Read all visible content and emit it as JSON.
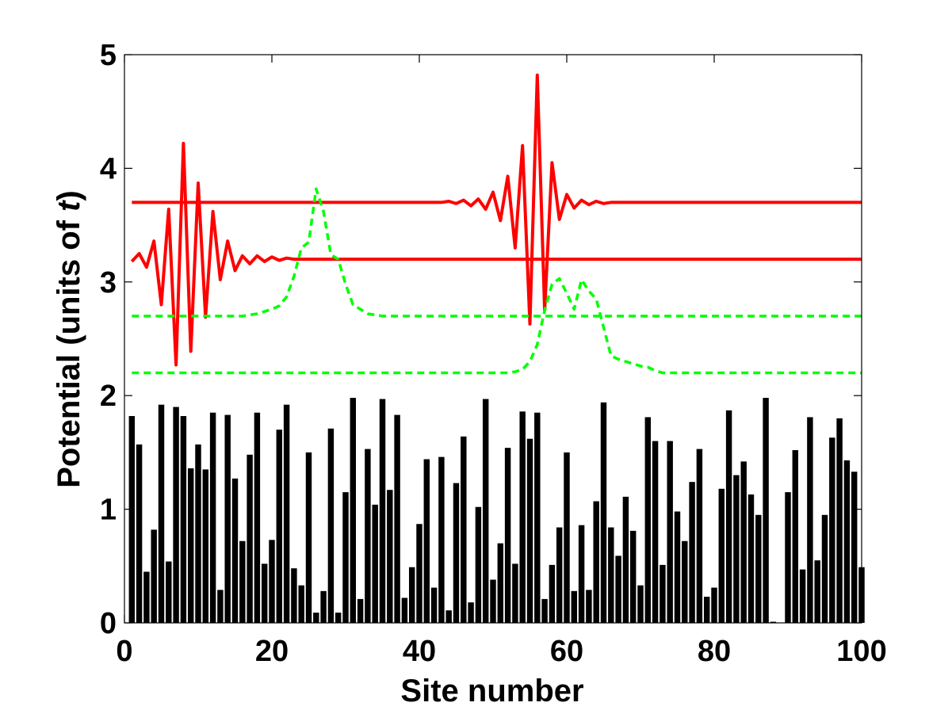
{
  "chart_data": {
    "type": "bar",
    "xlabel": "Site number",
    "ylabel_parts": {
      "prefix": "Potential (units of ",
      "italic": "t",
      "suffix": ")"
    },
    "xlim": [
      0,
      100
    ],
    "ylim": [
      0,
      5
    ],
    "xticks": [
      "0",
      "20",
      "40",
      "60",
      "80",
      "100"
    ],
    "yticks": [
      "0",
      "1",
      "2",
      "3",
      "4",
      "5"
    ],
    "grid": false,
    "colors": {
      "bars": "#000000",
      "red": "#ff0000",
      "green": "#00ff00",
      "axes": "#000000",
      "background": "#ffffff"
    },
    "bars": {
      "x": [
        1,
        2,
        3,
        4,
        5,
        6,
        7,
        8,
        9,
        10,
        11,
        12,
        13,
        14,
        15,
        16,
        17,
        18,
        19,
        20,
        21,
        22,
        23,
        24,
        25,
        26,
        27,
        28,
        29,
        30,
        31,
        32,
        33,
        34,
        35,
        36,
        37,
        38,
        39,
        40,
        41,
        42,
        43,
        44,
        45,
        46,
        47,
        48,
        49,
        50,
        51,
        52,
        53,
        54,
        55,
        56,
        57,
        58,
        59,
        60,
        61,
        62,
        63,
        64,
        65,
        66,
        67,
        68,
        69,
        70,
        71,
        72,
        73,
        74,
        75,
        76,
        77,
        78,
        79,
        80,
        81,
        82,
        83,
        84,
        85,
        86,
        87,
        88,
        89,
        90,
        91,
        92,
        93,
        94,
        95,
        96,
        97,
        98,
        99,
        100
      ],
      "values": [
        1.82,
        1.57,
        0.45,
        0.82,
        1.92,
        0.54,
        1.9,
        1.82,
        1.36,
        1.57,
        1.35,
        1.85,
        0.29,
        1.83,
        1.27,
        0.72,
        1.48,
        1.85,
        0.52,
        0.73,
        1.7,
        1.92,
        0.48,
        0.33,
        1.5,
        0.09,
        0.28,
        1.71,
        0.09,
        1.15,
        1.98,
        0.21,
        1.53,
        1.04,
        1.97,
        1.17,
        1.83,
        0.22,
        0.49,
        0.87,
        1.44,
        0.31,
        1.46,
        0.11,
        1.23,
        1.64,
        0.18,
        1.02,
        1.97,
        0.38,
        0.7,
        1.54,
        0.52,
        1.86,
        1.62,
        1.85,
        0.21,
        0.51,
        0.84,
        1.5,
        0.28,
        0.86,
        0.29,
        1.07,
        1.94,
        0.84,
        0.59,
        1.11,
        0.81,
        0.33,
        1.81,
        1.6,
        0.51,
        1.6,
        0.98,
        0.72,
        1.24,
        1.53,
        0.23,
        0.31,
        1.18,
        1.87,
        1.3,
        1.42,
        1.13,
        0.95,
        1.98,
        0.01,
        0.0,
        1.15,
        1.52,
        0.47,
        1.81,
        0.55,
        0.95,
        1.63,
        1.8,
        1.43,
        1.33,
        0.49
      ]
    },
    "series": [
      {
        "style": "solid-red",
        "segments": [
          {
            "x": [
              1,
              2,
              3,
              4,
              5,
              6,
              7,
              8,
              9,
              10,
              11,
              12,
              13,
              14,
              15,
              16,
              17,
              18,
              19,
              20,
              21,
              22,
              23,
              24,
              25,
              26,
              27,
              28,
              29,
              30,
              31,
              32,
              33,
              34,
              35,
              36,
              37,
              38,
              39,
              40,
              41,
              42,
              43,
              44,
              45,
              46,
              47,
              48,
              49,
              50,
              51,
              52,
              53,
              54,
              55,
              56,
              57,
              58,
              59,
              60,
              61,
              62,
              63,
              64,
              65,
              66,
              67,
              68,
              69,
              70,
              71,
              72,
              73,
              74,
              75,
              76,
              77,
              78,
              79,
              80,
              81,
              82,
              83,
              84,
              85,
              86,
              87,
              88,
              89,
              90,
              91,
              92,
              93,
              94,
              95,
              96,
              97,
              98,
              99,
              100
            ],
            "y": [
              3.18,
              3.25,
              3.13,
              3.36,
              2.8,
              3.64,
              2.27,
              4.22,
              2.39,
              3.87,
              2.69,
              3.62,
              3.02,
              3.36,
              3.1,
              3.23,
              3.16,
              3.23,
              3.18,
              3.22,
              3.19,
              3.21,
              3.2,
              3.2,
              3.2,
              3.2,
              3.2,
              3.2,
              3.2,
              3.2,
              3.2,
              3.2,
              3.2,
              3.2,
              3.2,
              3.2,
              3.2,
              3.2,
              3.2,
              3.2,
              3.2,
              3.2,
              3.2,
              3.2,
              3.2,
              3.2,
              3.2,
              3.2,
              3.2,
              3.2,
              3.2,
              3.2,
              3.2,
              3.2,
              3.2,
              3.2,
              3.2,
              3.2,
              3.2,
              3.2,
              3.2,
              3.2,
              3.2,
              3.2,
              3.2,
              3.2,
              3.2,
              3.2,
              3.2,
              3.2,
              3.2,
              3.2,
              3.2,
              3.2,
              3.2,
              3.2,
              3.2,
              3.2,
              3.2,
              3.2,
              3.2,
              3.2,
              3.2,
              3.2,
              3.2,
              3.2,
              3.2,
              3.2,
              3.2,
              3.2,
              3.2,
              3.2,
              3.2,
              3.2,
              3.2,
              3.2,
              3.2,
              3.2,
              3.2,
              3.2
            ]
          },
          {
            "x": [
              1,
              2,
              3,
              4,
              5,
              6,
              7,
              8,
              9,
              10,
              11,
              12,
              13,
              14,
              15,
              16,
              17,
              18,
              19,
              20,
              21,
              22,
              23,
              24,
              25,
              26,
              27,
              28,
              29,
              30,
              31,
              32,
              33,
              34,
              35,
              36,
              37,
              38,
              39,
              40,
              41,
              42,
              43,
              44,
              45,
              46,
              47,
              48,
              49,
              50,
              51,
              52,
              53,
              54,
              55,
              56,
              57,
              58,
              59,
              60,
              61,
              62,
              63,
              64,
              65,
              66,
              67,
              68,
              69,
              70,
              71,
              72,
              73,
              74,
              75,
              76,
              77,
              78,
              79,
              80,
              81,
              82,
              83,
              84,
              85,
              86,
              87,
              88,
              89,
              90,
              91,
              92,
              93,
              94,
              95,
              96,
              97,
              98,
              99,
              100
            ],
            "y": [
              3.7,
              3.7,
              3.7,
              3.7,
              3.7,
              3.7,
              3.7,
              3.7,
              3.7,
              3.7,
              3.7,
              3.7,
              3.7,
              3.7,
              3.7,
              3.7,
              3.7,
              3.7,
              3.7,
              3.7,
              3.7,
              3.7,
              3.7,
              3.7,
              3.7,
              3.7,
              3.7,
              3.7,
              3.7,
              3.7,
              3.7,
              3.7,
              3.7,
              3.7,
              3.7,
              3.7,
              3.7,
              3.7,
              3.7,
              3.7,
              3.7,
              3.7,
              3.7,
              3.71,
              3.69,
              3.72,
              3.67,
              3.73,
              3.64,
              3.79,
              3.54,
              3.93,
              3.3,
              4.2,
              2.63,
              4.82,
              2.75,
              4.05,
              3.55,
              3.77,
              3.65,
              3.72,
              3.68,
              3.71,
              3.69,
              3.7,
              3.7,
              3.7,
              3.7,
              3.7,
              3.7,
              3.7,
              3.7,
              3.7,
              3.7,
              3.7,
              3.7,
              3.7,
              3.7,
              3.7,
              3.7,
              3.7,
              3.7,
              3.7,
              3.7,
              3.7,
              3.7,
              3.7,
              3.7,
              3.7,
              3.7,
              3.7,
              3.7,
              3.7,
              3.7,
              3.7,
              3.7,
              3.7,
              3.7,
              3.7
            ]
          }
        ]
      },
      {
        "style": "dashed-green",
        "segments": [
          {
            "x": [
              1,
              2,
              3,
              4,
              5,
              6,
              7,
              8,
              9,
              10,
              11,
              12,
              13,
              14,
              15,
              16,
              17,
              18,
              19,
              20,
              21,
              22,
              23,
              24,
              25,
              26,
              27,
              28,
              29,
              30,
              31,
              32,
              33,
              34,
              35,
              36,
              37,
              38,
              39,
              40,
              41,
              42,
              43,
              44,
              45,
              46,
              47,
              48,
              49,
              50,
              51,
              52,
              53,
              54,
              55,
              56,
              57,
              58,
              59,
              60,
              61,
              62,
              63,
              64,
              65,
              66,
              67,
              68,
              69,
              70,
              71,
              72,
              73,
              74,
              75,
              76,
              77,
              78,
              79,
              80,
              81,
              82,
              83,
              84,
              85,
              86,
              87,
              88,
              89,
              90,
              91,
              92,
              93,
              94,
              95,
              96,
              97,
              98,
              99,
              100
            ],
            "y": [
              2.7,
              2.7,
              2.7,
              2.7,
              2.7,
              2.7,
              2.7,
              2.7,
              2.7,
              2.7,
              2.7,
              2.7,
              2.7,
              2.7,
              2.7,
              2.7,
              2.71,
              2.72,
              2.74,
              2.76,
              2.79,
              2.87,
              3.05,
              3.3,
              3.35,
              3.82,
              3.62,
              3.24,
              3.2,
              2.98,
              2.8,
              2.76,
              2.72,
              2.71,
              2.7,
              2.7,
              2.7,
              2.7,
              2.7,
              2.7,
              2.7,
              2.7,
              2.7,
              2.7,
              2.7,
              2.7,
              2.7,
              2.7,
              2.7,
              2.7,
              2.7,
              2.7,
              2.7,
              2.7,
              2.7,
              2.7,
              2.7,
              2.7,
              2.7,
              2.7,
              2.7,
              2.7,
              2.7,
              2.7,
              2.7,
              2.7,
              2.7,
              2.7,
              2.7,
              2.7,
              2.7,
              2.7,
              2.7,
              2.7,
              2.7,
              2.7,
              2.7,
              2.7,
              2.7,
              2.7,
              2.7,
              2.7,
              2.7,
              2.7,
              2.7,
              2.7,
              2.7,
              2.7,
              2.7,
              2.7,
              2.7,
              2.7,
              2.7,
              2.7,
              2.7,
              2.7,
              2.7,
              2.7,
              2.7,
              2.7
            ]
          },
          {
            "x": [
              1,
              2,
              3,
              4,
              5,
              6,
              7,
              8,
              9,
              10,
              11,
              12,
              13,
              14,
              15,
              16,
              17,
              18,
              19,
              20,
              21,
              22,
              23,
              24,
              25,
              26,
              27,
              28,
              29,
              30,
              31,
              32,
              33,
              34,
              35,
              36,
              37,
              38,
              39,
              40,
              41,
              42,
              43,
              44,
              45,
              46,
              47,
              48,
              49,
              50,
              51,
              52,
              53,
              54,
              55,
              56,
              57,
              58,
              59,
              60,
              61,
              62,
              63,
              64,
              65,
              66,
              67,
              68,
              69,
              70,
              71,
              72,
              73,
              74,
              75,
              76,
              77,
              78,
              79,
              80,
              81,
              82,
              83,
              84,
              85,
              86,
              87,
              88,
              89,
              90,
              91,
              92,
              93,
              94,
              95,
              96,
              97,
              98,
              99,
              100
            ],
            "y": [
              2.2,
              2.2,
              2.2,
              2.2,
              2.2,
              2.2,
              2.2,
              2.2,
              2.2,
              2.2,
              2.2,
              2.2,
              2.2,
              2.2,
              2.2,
              2.2,
              2.2,
              2.2,
              2.2,
              2.2,
              2.2,
              2.2,
              2.2,
              2.2,
              2.2,
              2.2,
              2.2,
              2.2,
              2.2,
              2.2,
              2.2,
              2.2,
              2.2,
              2.2,
              2.2,
              2.2,
              2.2,
              2.2,
              2.2,
              2.2,
              2.2,
              2.2,
              2.2,
              2.2,
              2.2,
              2.2,
              2.2,
              2.2,
              2.2,
              2.2,
              2.2,
              2.2,
              2.21,
              2.23,
              2.3,
              2.45,
              2.75,
              2.98,
              3.03,
              2.9,
              2.76,
              3.02,
              2.92,
              2.85,
              2.6,
              2.35,
              2.32,
              2.3,
              2.28,
              2.26,
              2.25,
              2.22,
              2.2,
              2.2,
              2.2,
              2.2,
              2.2,
              2.2,
              2.2,
              2.2,
              2.2,
              2.2,
              2.2,
              2.2,
              2.2,
              2.2,
              2.2,
              2.2,
              2.2,
              2.2,
              2.2,
              2.2,
              2.2,
              2.2,
              2.2,
              2.2,
              2.2,
              2.2,
              2.2,
              2.2
            ]
          }
        ]
      }
    ]
  }
}
